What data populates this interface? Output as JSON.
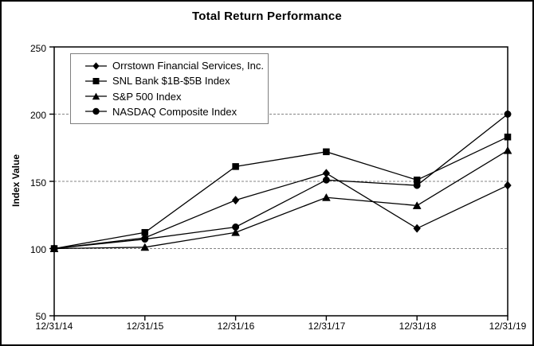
{
  "chart_data": {
    "type": "line",
    "title": "Total Return Performance",
    "ylabel": "Index Value",
    "xlabel": "",
    "ylim": [
      50,
      250
    ],
    "y_ticks": [
      "250",
      "200",
      "150",
      "100",
      "50"
    ],
    "gridline_values": [
      100,
      150,
      200
    ],
    "grid": "horizontal-dashed",
    "legend_position": "top-left-inside",
    "categories": [
      "12/31/14",
      "12/31/15",
      "12/31/16",
      "12/31/17",
      "12/31/18",
      "12/31/19"
    ],
    "series": [
      {
        "name": "Orrstown Financial Services, Inc.",
        "marker": "diamond",
        "values": [
          100,
          108,
          136,
          156,
          115,
          147
        ]
      },
      {
        "name": "SNL Bank $1B-$5B Index",
        "marker": "square",
        "values": [
          100,
          112,
          161,
          172,
          151,
          183
        ]
      },
      {
        "name": "S&P 500 Index",
        "marker": "triangle",
        "values": [
          100,
          101,
          112,
          138,
          132,
          173
        ]
      },
      {
        "name": "NASDAQ Composite Index",
        "marker": "circle",
        "values": [
          100,
          107,
          116,
          151,
          147,
          200
        ]
      }
    ],
    "colors": {
      "series": "#000000",
      "grid": "#858585",
      "legend_border": "#7f7f7f",
      "background": "#ffffff"
    }
  }
}
